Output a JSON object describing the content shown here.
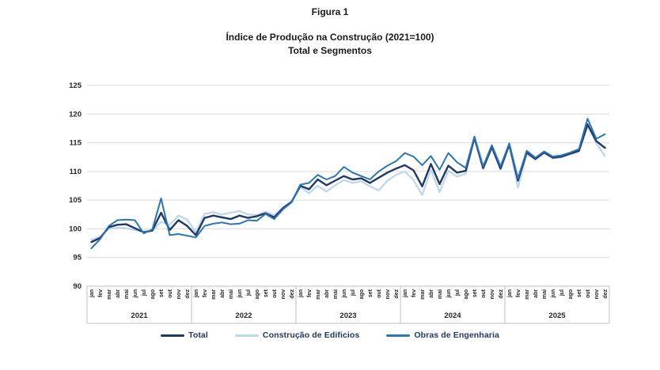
{
  "figure": {
    "title": "Figura 1",
    "subtitle_line1": "Índice de Produção na Construção (2021=100)",
    "subtitle_line2": "Total e Segmentos"
  },
  "chart_data": {
    "type": "line",
    "title": "Índice de Produção na Construção (2021=100)",
    "subtitle": "Total e Segmentos",
    "xlabel": "",
    "ylabel": "",
    "ylim": [
      90,
      125
    ],
    "yticks": [
      90,
      95,
      100,
      105,
      110,
      115,
      120,
      125
    ],
    "grid": true,
    "legend_position": "bottom",
    "x_months": [
      "jan",
      "fev",
      "mar",
      "abr",
      "mai",
      "jun",
      "jul",
      "ago",
      "set",
      "out",
      "nov",
      "dez"
    ],
    "x_years": [
      "2021",
      "2022",
      "2023",
      "2024",
      "2025"
    ],
    "series": [
      {
        "name": "Total",
        "color": "#1F3864",
        "values": [
          97.7,
          98.4,
          100.3,
          100.7,
          100.8,
          100.1,
          99.4,
          99.7,
          102.8,
          99.8,
          101.5,
          100.5,
          98.9,
          101.9,
          102.3,
          102.0,
          101.7,
          102.3,
          101.9,
          102.2,
          102.7,
          102.0,
          103.6,
          104.7,
          107.5,
          106.9,
          108.6,
          107.6,
          108.4,
          109.2,
          108.6,
          108.8,
          108.0,
          108.9,
          109.8,
          110.5,
          111.1,
          110.2,
          107.4,
          111.3,
          107.8,
          111.0,
          109.8,
          110.1,
          115.9,
          110.6,
          114.3,
          110.5,
          114.7,
          108.4,
          113.3,
          112.2,
          113.3,
          112.4,
          112.6,
          113.1,
          113.6,
          118.2,
          115.3,
          114.1
        ]
      },
      {
        "name": "Construção de Edificios",
        "color": "#BDD7EE",
        "values": [
          98.1,
          98.6,
          100.0,
          100.2,
          100.1,
          99.8,
          99.5,
          99.6,
          101.2,
          100.7,
          102.3,
          101.6,
          99.4,
          102.6,
          102.9,
          102.5,
          102.8,
          103.1,
          102.5,
          102.4,
          103.0,
          102.4,
          103.7,
          104.8,
          107.3,
          106.2,
          107.5,
          106.5,
          107.6,
          108.5,
          108.0,
          108.3,
          107.4,
          106.7,
          108.4,
          109.4,
          110.0,
          108.5,
          105.9,
          110.3,
          106.4,
          110.1,
          109.1,
          109.6,
          115.7,
          110.4,
          114.0,
          110.3,
          114.5,
          107.2,
          113.0,
          112.0,
          113.2,
          112.3,
          112.4,
          113.0,
          113.4,
          117.9,
          114.9,
          112.7
        ]
      },
      {
        "name": "Obras de Engenharia",
        "color": "#2E75B6",
        "values": [
          96.6,
          98.2,
          100.5,
          101.5,
          101.6,
          101.5,
          99.2,
          99.9,
          105.3,
          98.9,
          99.1,
          98.8,
          98.5,
          100.5,
          100.9,
          101.1,
          100.8,
          100.9,
          101.5,
          101.4,
          102.6,
          101.7,
          103.4,
          104.6,
          107.7,
          108.0,
          109.4,
          108.6,
          109.2,
          110.8,
          109.8,
          109.2,
          108.6,
          110.0,
          111.0,
          111.8,
          113.2,
          112.6,
          111.1,
          112.7,
          110.3,
          113.2,
          111.6,
          110.6,
          116.1,
          110.9,
          114.6,
          110.9,
          114.9,
          108.8,
          113.6,
          112.4,
          113.5,
          112.6,
          112.8,
          113.3,
          113.9,
          119.2,
          115.7,
          116.5
        ]
      }
    ],
    "colors": {
      "grid": "#D9D9D9",
      "axis": "#BFBFBF",
      "tick_text": "#262626",
      "legend_text": "#1F3864"
    }
  }
}
